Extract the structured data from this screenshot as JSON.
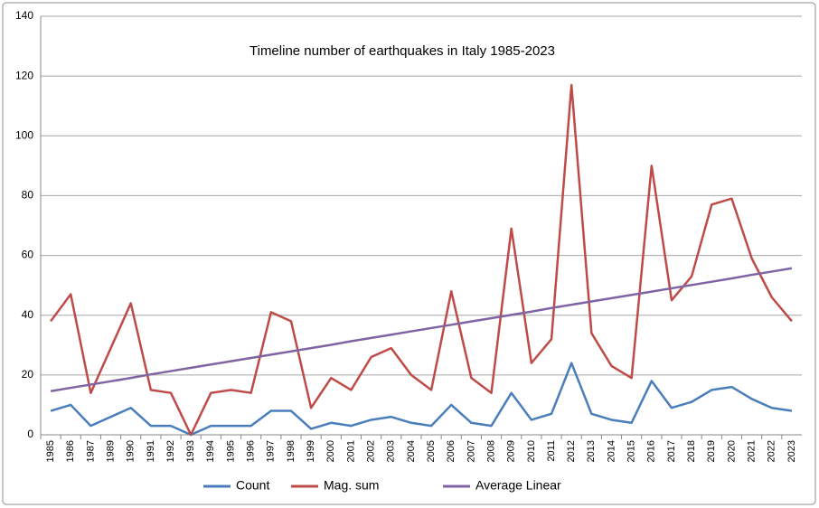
{
  "chart_data": {
    "type": "line",
    "title": "Timeline number of earthquakes in Italy 1985-2023",
    "categories": [
      "1985",
      "1986",
      "1987",
      "1989",
      "1990",
      "1991",
      "1992",
      "1993",
      "1994",
      "1995",
      "1996",
      "1997",
      "1998",
      "1999",
      "2000",
      "2001",
      "2002",
      "2003",
      "2004",
      "2005",
      "2006",
      "2007",
      "2008",
      "2009",
      "2010",
      "2011",
      "2012",
      "2013",
      "2014",
      "2015",
      "2016",
      "2017",
      "2018",
      "2019",
      "2020",
      "2021",
      "2022",
      "2023"
    ],
    "series": [
      {
        "name": "Count",
        "color": "#4a7ebb",
        "values": [
          8,
          10,
          3,
          6,
          9,
          3,
          3,
          0,
          3,
          3,
          3,
          8,
          8,
          2,
          4,
          3,
          5,
          6,
          4,
          3,
          10,
          4,
          3,
          14,
          5,
          7,
          24,
          7,
          5,
          4,
          18,
          9,
          11,
          15,
          16,
          12,
          9,
          8
        ]
      },
      {
        "name": "Mag. sum",
        "color": "#be4b48",
        "values": [
          38,
          47,
          14,
          29,
          44,
          15,
          14,
          0,
          14,
          15,
          14,
          41,
          38,
          9,
          19,
          15,
          26,
          29,
          20,
          15,
          48,
          19,
          14,
          69,
          24,
          32,
          117,
          34,
          23,
          19,
          90,
          45,
          53,
          77,
          79,
          59,
          46,
          38
        ]
      },
      {
        "name": "Average Linear",
        "color": "#8064a2",
        "values": [
          14.6,
          15.7,
          16.8,
          17.9,
          19.0,
          20.2,
          21.3,
          22.4,
          23.5,
          24.6,
          25.7,
          26.8,
          27.9,
          29.0,
          30.1,
          31.3,
          32.4,
          33.5,
          34.6,
          35.7,
          36.8,
          37.9,
          39.0,
          40.1,
          41.2,
          42.4,
          43.5,
          44.6,
          45.7,
          46.8,
          47.9,
          49.0,
          50.1,
          51.2,
          52.3,
          53.5,
          54.6,
          55.7
        ]
      }
    ],
    "ylim": [
      0,
      140
    ],
    "yticks": [
      0,
      20,
      40,
      60,
      80,
      100,
      120,
      140
    ],
    "grid": true,
    "legend": "bottom"
  }
}
